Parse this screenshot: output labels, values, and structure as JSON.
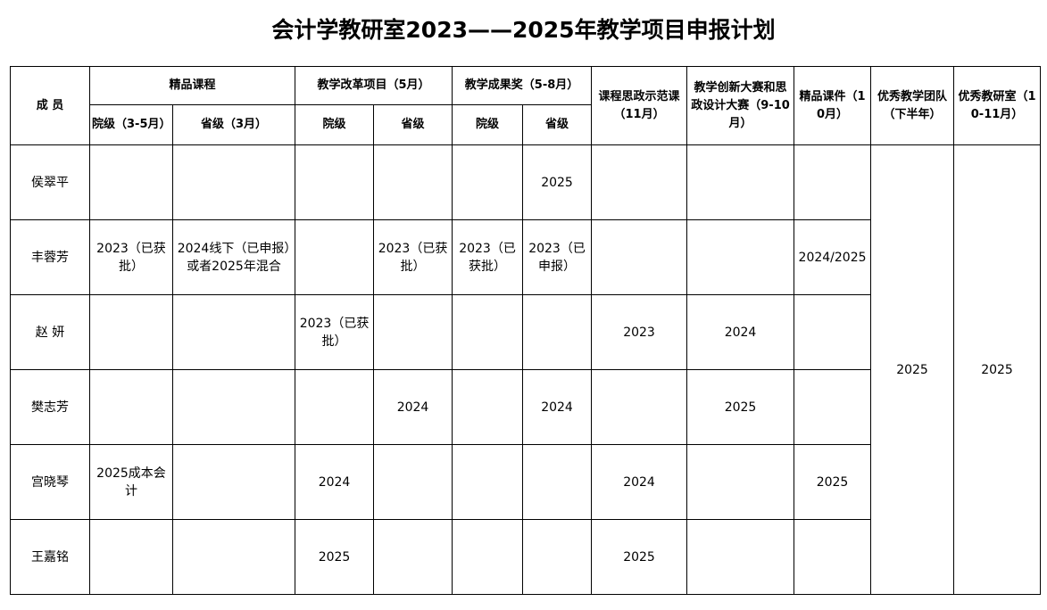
{
  "title": "会计学教研室2023——2025年教学项目申报计划",
  "header": {
    "member": "成 员",
    "quality_course": "精品课程",
    "teaching_reform": "教学改革项目（5月）",
    "teaching_award": "教学成果奖（5-8月）",
    "ideology_demo": "课程思政示范课（11月）",
    "innovation_contest": "教学创新大赛和思政设计大赛（9-10月）",
    "quality_courseware": "精品课件（10月）",
    "excellent_team": "优秀教学团队（下半年）",
    "excellent_office": "优秀教研室（10-11月）",
    "qc_college": "院级（3-5月）",
    "qc_province": "省级（3月）",
    "tr_college": "院级",
    "tr_province": "省级",
    "ta_college": "院级",
    "ta_province": "省级"
  },
  "rows": [
    {
      "name": "侯翠平",
      "qc_college": "",
      "qc_province": "",
      "tr_college": "",
      "tr_province": "",
      "ta_college": "",
      "ta_province": "2025",
      "ideology_demo": "",
      "innovation_contest": "",
      "quality_courseware": ""
    },
    {
      "name": "丰蓉芳",
      "qc_college": "2023（已获批）",
      "qc_province": "2024线下（已申报）或者2025年混合",
      "tr_college": "",
      "tr_province": "2023（已获批）",
      "ta_college": "2023（已获批）",
      "ta_province": "2023（已申报）",
      "ideology_demo": "",
      "innovation_contest": "",
      "quality_courseware": "2024/2025"
    },
    {
      "name": "赵 妍",
      "qc_college": "",
      "qc_province": "",
      "tr_college": "2023（已获批）",
      "tr_province": "",
      "ta_college": "",
      "ta_province": "",
      "ideology_demo": "2023",
      "innovation_contest": "2024",
      "quality_courseware": ""
    },
    {
      "name": "樊志芳",
      "qc_college": "",
      "qc_province": "",
      "tr_college": "",
      "tr_province": "2024",
      "ta_college": "",
      "ta_province": "2024",
      "ideology_demo": "",
      "innovation_contest": "2025",
      "quality_courseware": ""
    },
    {
      "name": "宫晓琴",
      "qc_college": "2025成本会计",
      "qc_province": "",
      "tr_college": "2024",
      "tr_province": "",
      "ta_college": "",
      "ta_province": "",
      "ideology_demo": "2024",
      "innovation_contest": "",
      "quality_courseware": "2025"
    },
    {
      "name": "王嘉铭",
      "qc_college": "",
      "qc_province": "",
      "tr_college": "2025",
      "tr_province": "",
      "ta_college": "",
      "ta_province": "",
      "ideology_demo": "2025",
      "innovation_contest": "",
      "quality_courseware": ""
    }
  ],
  "merged": {
    "excellent_team": "2025",
    "excellent_office": "2025"
  }
}
